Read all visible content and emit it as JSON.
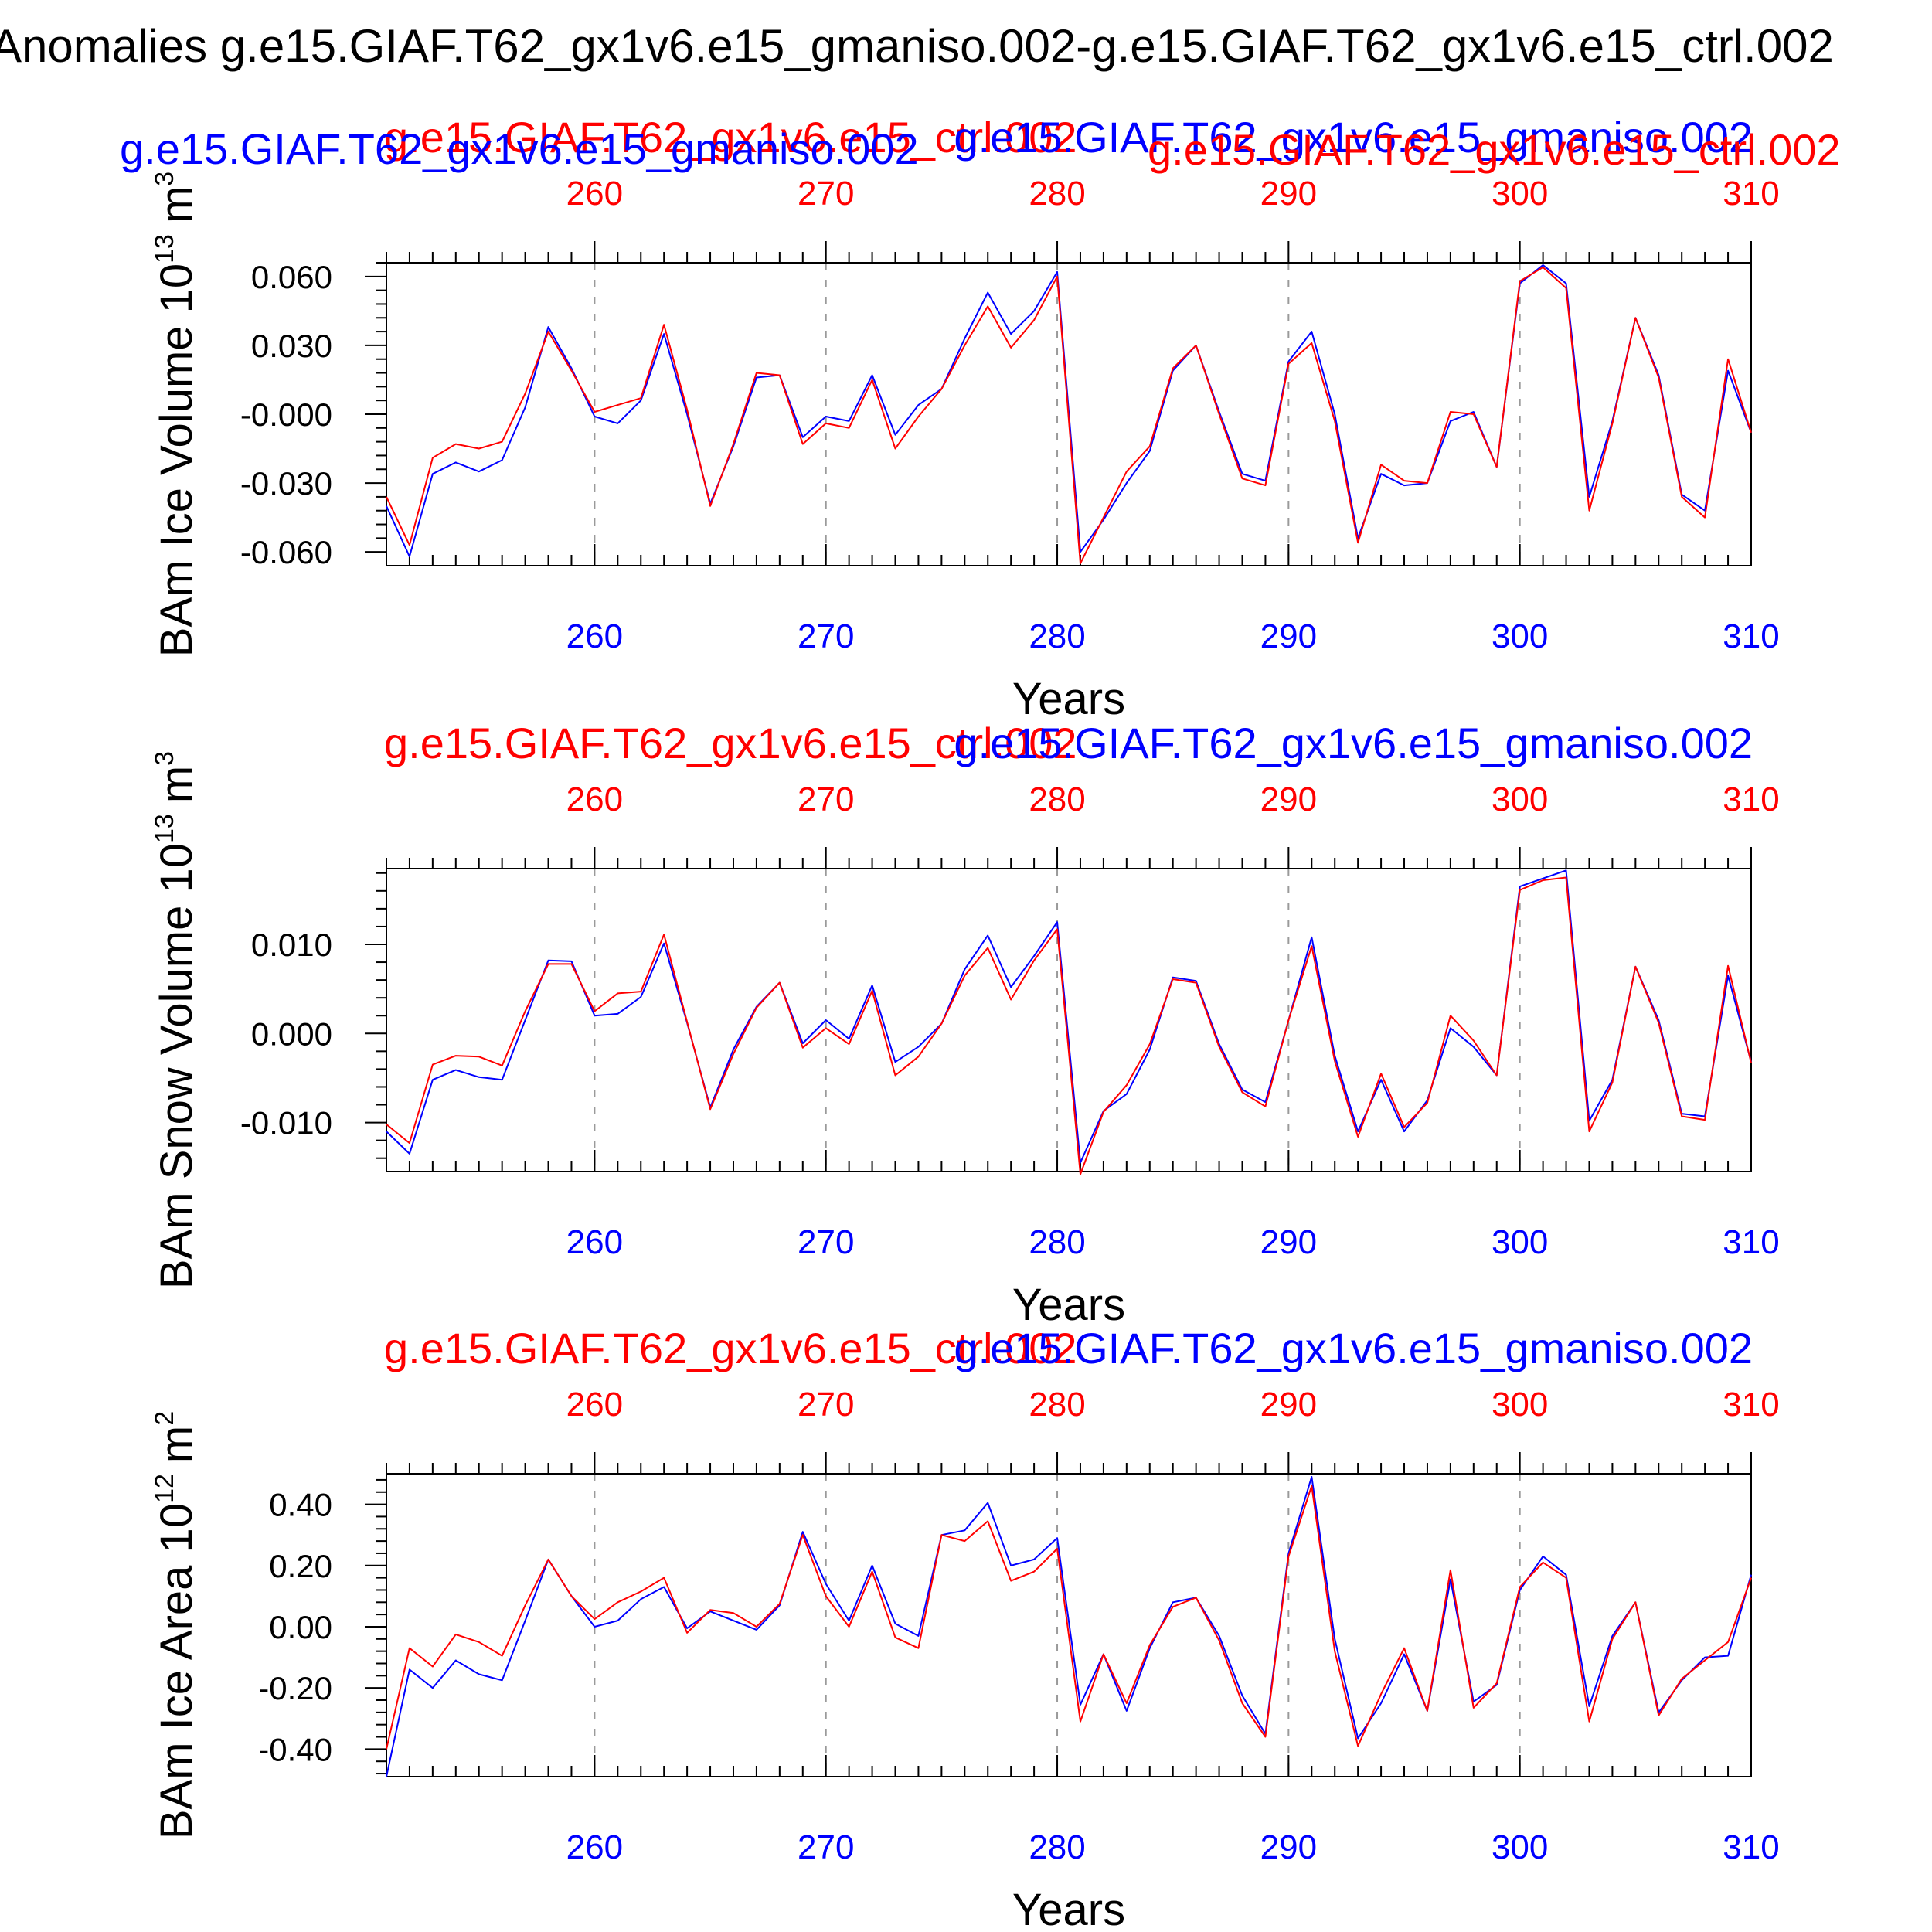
{
  "figure_title": "Anomalies g.e15.GIAF.T62_gx1v6.e15_gmaniso.002-g.e15.GIAF.T62_gx1v6.e15_ctrl.002",
  "case_labels": {
    "ctrl": "g.e15.GIAF.T62_gx1v6.e15_ctrl.002",
    "gmaniso": "g.e15.GIAF.T62_gx1v6.e15_gmaniso.002"
  },
  "colors": {
    "ctrl": "#ff0000",
    "gmaniso": "#0000ff",
    "axis": "#000000",
    "grid": "#9a9a9a"
  },
  "chart_data": [
    {
      "type": "line",
      "ylabel": "BAm Ice Volume 10^13 m^3",
      "ylabel_main": "BAm Ice Volume 10",
      "ylabel_exp": "13",
      "ylabel_unit": "m",
      "ylabel_unit_exp": "3",
      "xlabel": "Years",
      "xlim": [
        251,
        310
      ],
      "ylim": [
        -0.066,
        0.066
      ],
      "yticks": [
        -0.06,
        -0.03,
        0.0,
        0.03,
        0.06
      ],
      "ytick_labels": [
        "-0.060",
        "-0.030",
        "-0.000",
        "0.030",
        "0.060"
      ],
      "xticks": [
        260,
        270,
        280,
        290,
        300,
        310
      ],
      "xtick_labels": [
        "260",
        "270",
        "280",
        "290",
        "300",
        "310"
      ],
      "grid": "dashed vertical at x ticks",
      "x_start": 251,
      "series": [
        {
          "name": "g.e15.GIAF.T62_gx1v6.e15_gmaniso.002",
          "color": "#0000ff",
          "values": [
            -0.04,
            -0.062,
            -0.026,
            -0.021,
            -0.025,
            -0.02,
            0.003,
            0.038,
            0.02,
            -0.001,
            -0.004,
            0.006,
            0.035,
            0.0,
            -0.039,
            -0.014,
            0.016,
            0.017,
            -0.01,
            -0.001,
            -0.003,
            0.017,
            -0.009,
            0.004,
            0.011,
            0.033,
            0.053,
            0.035,
            0.045,
            0.062,
            -0.06,
            -0.046,
            -0.03,
            -0.016,
            0.019,
            0.03,
            0.001,
            -0.026,
            -0.029,
            0.023,
            0.036,
            0.0,
            -0.054,
            -0.026,
            -0.031,
            -0.03,
            -0.003,
            0.001,
            -0.023,
            0.057,
            0.065,
            0.057,
            -0.036,
            -0.003,
            0.042,
            0.017,
            -0.035,
            -0.042,
            0.019,
            -0.008
          ]
        },
        {
          "name": "g.e15.GIAF.T62_gx1v6.e15_ctrl.002",
          "color": "#ff0000",
          "values": [
            -0.036,
            -0.057,
            -0.019,
            -0.013,
            -0.015,
            -0.012,
            0.009,
            0.036,
            0.019,
            0.001,
            0.004,
            0.007,
            0.039,
            0.002,
            -0.04,
            -0.013,
            0.018,
            0.017,
            -0.013,
            -0.004,
            -0.006,
            0.015,
            -0.015,
            -0.001,
            0.011,
            0.03,
            0.047,
            0.029,
            0.041,
            0.06,
            -0.065,
            -0.045,
            -0.025,
            -0.014,
            0.02,
            0.03,
            0.0,
            -0.028,
            -0.031,
            0.022,
            0.031,
            -0.003,
            -0.056,
            -0.022,
            -0.029,
            -0.03,
            0.001,
            0.0,
            -0.023,
            0.058,
            0.064,
            0.055,
            -0.042,
            -0.004,
            0.042,
            0.016,
            -0.036,
            -0.045,
            0.024,
            -0.008
          ]
        }
      ]
    },
    {
      "type": "line",
      "ylabel": "BAm Snow Volume 10^13 m^3",
      "ylabel_main": "BAm Snow Volume 10",
      "ylabel_exp": "13",
      "ylabel_unit": "m",
      "ylabel_unit_exp": "3",
      "xlabel": "Years",
      "xlim": [
        251,
        310
      ],
      "ylim": [
        -0.0155,
        0.0185
      ],
      "yticks": [
        -0.01,
        0.0,
        0.01
      ],
      "ytick_labels": [
        "-0.010",
        "0.000",
        "0.010"
      ],
      "xticks": [
        260,
        270,
        280,
        290,
        300,
        310
      ],
      "xtick_labels": [
        "260",
        "270",
        "280",
        "290",
        "300",
        "310"
      ],
      "grid": "dashed vertical at x ticks",
      "x_start": 251,
      "series": [
        {
          "name": "g.e15.GIAF.T62_gx1v6.e15_gmaniso.002",
          "color": "#0000ff",
          "values": [
            -0.011,
            -0.0135,
            -0.0052,
            -0.0041,
            -0.0049,
            -0.0052,
            0.0015,
            0.0082,
            0.0081,
            0.002,
            0.0022,
            0.0041,
            0.0101,
            0.0012,
            -0.0083,
            -0.0018,
            0.003,
            0.0057,
            -0.0011,
            0.0015,
            -0.0006,
            0.0054,
            -0.0032,
            -0.0015,
            0.0011,
            0.0072,
            0.011,
            0.0052,
            0.0087,
            0.0125,
            -0.0145,
            -0.0087,
            -0.0068,
            -0.0018,
            0.0063,
            0.0059,
            -0.0012,
            -0.0063,
            -0.0077,
            0.0015,
            0.0108,
            -0.0025,
            -0.011,
            -0.0052,
            -0.011,
            -0.0075,
            0.0006,
            -0.0015,
            -0.0047,
            0.0165,
            0.0174,
            0.0183,
            -0.0098,
            -0.0052,
            0.0075,
            0.0015,
            -0.009,
            -0.0093,
            0.0065,
            -0.0032
          ]
        },
        {
          "name": "g.e15.GIAF.T62_gx1v6.e15_ctrl.002",
          "color": "#ff0000",
          "values": [
            -0.0102,
            -0.0123,
            -0.0035,
            -0.0025,
            -0.0026,
            -0.0036,
            0.0025,
            0.0078,
            0.0078,
            0.0025,
            0.0045,
            0.0047,
            0.0111,
            0.0013,
            -0.0085,
            -0.0023,
            0.0029,
            0.0057,
            -0.0016,
            0.0006,
            -0.0012,
            0.0048,
            -0.0047,
            -0.0026,
            0.0011,
            0.0065,
            0.0096,
            0.0038,
            0.0082,
            0.0117,
            -0.0158,
            -0.0088,
            -0.0058,
            -0.0012,
            0.0061,
            0.0057,
            -0.0015,
            -0.0066,
            -0.0082,
            0.0015,
            0.0098,
            -0.0031,
            -0.0116,
            -0.0045,
            -0.0105,
            -0.0078,
            0.002,
            -0.0008,
            -0.0047,
            0.0161,
            0.0172,
            0.0175,
            -0.011,
            -0.0055,
            0.0075,
            0.0012,
            -0.0093,
            -0.0097,
            0.0076,
            -0.0033
          ]
        }
      ]
    },
    {
      "type": "line",
      "ylabel": "BAm Ice Area 10^12 m^2",
      "ylabel_main": "BAm Ice Area 10",
      "ylabel_exp": "12",
      "ylabel_unit": "m",
      "ylabel_unit_exp": "2",
      "xlabel": "Years",
      "xlim": [
        251,
        310
      ],
      "ylim": [
        -0.49,
        0.5
      ],
      "yticks": [
        -0.4,
        -0.2,
        0.0,
        0.2,
        0.4
      ],
      "ytick_labels": [
        "-0.40",
        "-0.20",
        "0.00",
        "0.20",
        "0.40"
      ],
      "xticks": [
        260,
        270,
        280,
        290,
        300,
        310
      ],
      "xtick_labels": [
        "260",
        "270",
        "280",
        "290",
        "300",
        "310"
      ],
      "grid": "dashed vertical at x ticks",
      "x_start": 251,
      "series": [
        {
          "name": "g.e15.GIAF.T62_gx1v6.e15_gmaniso.002",
          "color": "#0000ff",
          "values": [
            -0.49,
            -0.14,
            -0.2,
            -0.11,
            -0.155,
            -0.175,
            0.02,
            0.22,
            0.1,
            0.0,
            0.02,
            0.09,
            0.13,
            -0.005,
            0.05,
            0.02,
            -0.01,
            0.07,
            0.31,
            0.14,
            0.02,
            0.2,
            0.01,
            -0.03,
            0.3,
            0.315,
            0.405,
            0.2,
            0.22,
            0.29,
            -0.255,
            -0.09,
            -0.275,
            -0.07,
            0.08,
            0.095,
            -0.03,
            -0.225,
            -0.35,
            0.24,
            0.49,
            -0.04,
            -0.365,
            -0.25,
            -0.09,
            -0.275,
            0.155,
            -0.245,
            -0.19,
            0.12,
            0.23,
            0.17,
            -0.26,
            -0.03,
            0.08,
            -0.28,
            -0.175,
            -0.1,
            -0.095,
            0.17
          ]
        },
        {
          "name": "g.e15.GIAF.T62_gx1v6.e15_ctrl.002",
          "color": "#ff0000",
          "values": [
            -0.4,
            -0.07,
            -0.13,
            -0.025,
            -0.05,
            -0.095,
            0.07,
            0.22,
            0.1,
            0.025,
            0.08,
            0.115,
            0.16,
            -0.02,
            0.055,
            0.045,
            0.0,
            0.075,
            0.3,
            0.1,
            0.0,
            0.18,
            -0.035,
            -0.07,
            0.3,
            0.28,
            0.345,
            0.15,
            0.18,
            0.255,
            -0.31,
            -0.09,
            -0.25,
            -0.06,
            0.065,
            0.095,
            -0.045,
            -0.25,
            -0.36,
            0.23,
            0.46,
            -0.08,
            -0.39,
            -0.22,
            -0.07,
            -0.275,
            0.185,
            -0.265,
            -0.185,
            0.13,
            0.21,
            0.16,
            -0.31,
            -0.04,
            0.08,
            -0.29,
            -0.17,
            -0.11,
            -0.05,
            0.16
          ]
        }
      ]
    }
  ]
}
